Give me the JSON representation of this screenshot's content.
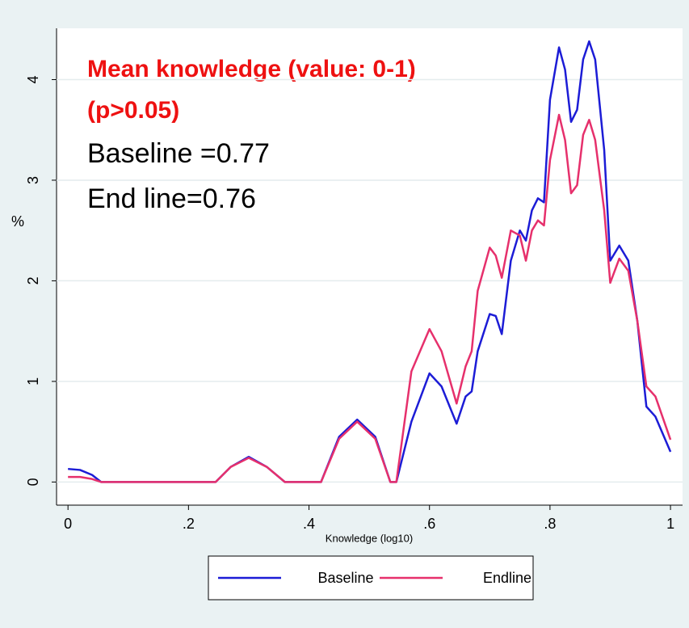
{
  "chart_data": {
    "type": "line",
    "x_label": "Knowledge (log10)",
    "y_label": "%",
    "annotations": [
      "Mean knowledge  (value: 0-1)",
      "(p>0.05)",
      "Baseline =0.77",
      "End line=0.76"
    ],
    "x": [
      0,
      0.02,
      0.04,
      0.055,
      0.245,
      0.27,
      0.3,
      0.33,
      0.36,
      0.42,
      0.45,
      0.48,
      0.51,
      0.535,
      0.545,
      0.57,
      0.6,
      0.62,
      0.645,
      0.66,
      0.67,
      0.68,
      0.7,
      0.71,
      0.72,
      0.735,
      0.75,
      0.76,
      0.77,
      0.78,
      0.79,
      0.8,
      0.815,
      0.825,
      0.835,
      0.845,
      0.855,
      0.865,
      0.875,
      0.89,
      0.9,
      0.915,
      0.93,
      0.945,
      0.96,
      0.975,
      1.0
    ],
    "series": [
      {
        "name": "Baseline",
        "color": "#1c1cd6",
        "values": [
          0.13,
          0.12,
          0.07,
          0,
          0,
          0.15,
          0.25,
          0.15,
          0,
          0,
          0.45,
          0.62,
          0.45,
          0,
          0,
          0.6,
          1.08,
          0.95,
          0.58,
          0.85,
          0.9,
          1.3,
          1.67,
          1.65,
          1.47,
          2.2,
          2.5,
          2.4,
          2.7,
          2.82,
          2.78,
          3.8,
          4.32,
          4.1,
          3.58,
          3.7,
          4.2,
          4.38,
          4.2,
          3.3,
          2.2,
          2.35,
          2.2,
          1.6,
          0.75,
          0.65,
          0.3
        ]
      },
      {
        "name": "Endline",
        "color": "#e6306c",
        "values": [
          0.05,
          0.05,
          0.03,
          0,
          0,
          0.15,
          0.24,
          0.15,
          0,
          0,
          0.43,
          0.6,
          0.43,
          0,
          0,
          1.1,
          1.52,
          1.3,
          0.78,
          1.15,
          1.3,
          1.9,
          2.33,
          2.25,
          2.03,
          2.5,
          2.45,
          2.2,
          2.5,
          2.6,
          2.55,
          3.2,
          3.65,
          3.4,
          2.87,
          2.95,
          3.45,
          3.6,
          3.4,
          2.7,
          1.98,
          2.22,
          2.1,
          1.6,
          0.95,
          0.85,
          0.42
        ]
      }
    ],
    "xlim": [
      -0.019,
      1.02
    ],
    "xticks": [
      0,
      {
        "value": 0.2,
        "label": ".2"
      },
      {
        "value": 0.4,
        "label": ".4"
      },
      {
        "value": 0.6,
        "label": ".6"
      },
      {
        "value": 0.8,
        "label": ".8"
      },
      1
    ],
    "ylim": [
      -0.23,
      4.51
    ],
    "yticks": [
      0,
      1,
      2,
      3,
      4
    ],
    "grid": true,
    "legend": "bottom"
  }
}
